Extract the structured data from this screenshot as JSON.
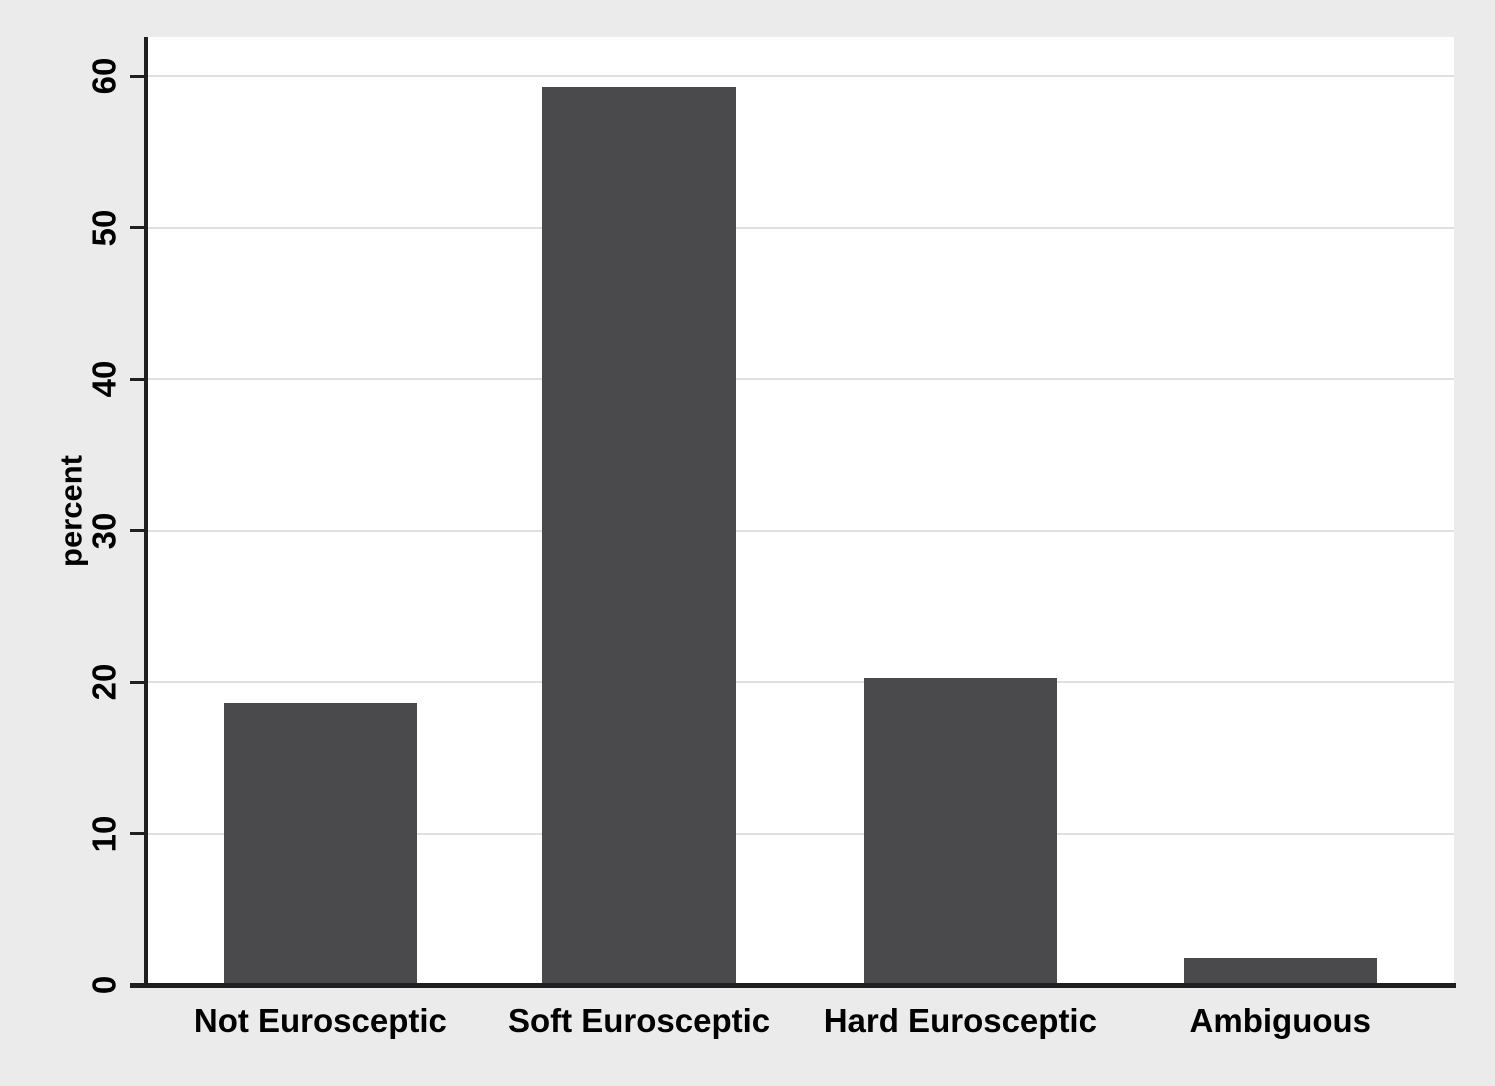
{
  "chart_data": {
    "type": "bar",
    "title": "",
    "categories": [
      "Not Eurosceptic",
      "Soft Eurosceptic",
      "Hard Eurosceptic",
      "Ambiguous"
    ],
    "values": [
      18.6,
      59.3,
      20.3,
      1.8
    ],
    "xlabel": "",
    "ylabel": "percent",
    "ylim": [
      0,
      62.6
    ],
    "yticks": [
      0,
      10,
      20,
      30,
      40,
      50,
      60
    ],
    "grid": true,
    "legend": "none",
    "colors": {
      "bar": "#4a4a4c",
      "background": "#ebebeb",
      "plot_background": "#ffffff",
      "gridline": "#e0e0e0",
      "axis": "#1f1f1f",
      "text": "#000000"
    },
    "layout_hints": {
      "bar_centers_frac": [
        0.132,
        0.376,
        0.622,
        0.867
      ],
      "bar_width_frac": 0.148
    }
  }
}
